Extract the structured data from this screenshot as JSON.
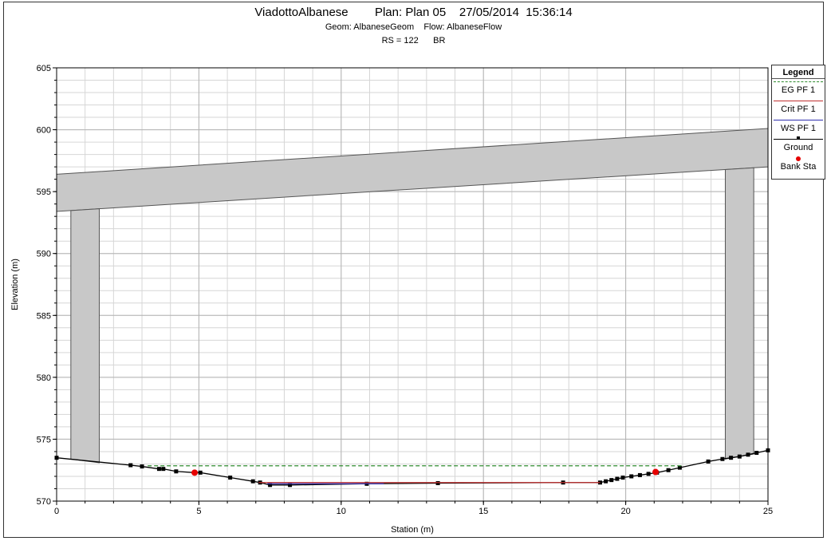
{
  "header": {
    "line1": "ViadottoAlbanese        Plan: Plan 05    27/05/2014  15:36:14",
    "line2": "Geom: AlbaneseGeom    Flow: AlbaneseFlow",
    "line3": "RS = 122      BR"
  },
  "legend": {
    "title": "Legend",
    "items": [
      {
        "name": "EG PF 1",
        "color": "#2e8b2e",
        "style": "dashed"
      },
      {
        "name": "Crit PF 1",
        "color": "#c03030",
        "style": "solid"
      },
      {
        "name": "WS PF 1",
        "color": "#3030b0",
        "style": "solid"
      },
      {
        "name": "Ground",
        "color": "#000000",
        "style": "solid-marker"
      },
      {
        "name": "Bank Sta",
        "color": "#e60000",
        "style": "dot"
      }
    ]
  },
  "chart_data": {
    "type": "line",
    "xlabel": "Station (m)",
    "ylabel": "Elevation (m)",
    "xlim": [
      0,
      25
    ],
    "ylim": [
      570,
      605
    ],
    "x_major_ticks": [
      0,
      5,
      10,
      15,
      20,
      25
    ],
    "y_major_ticks": [
      570,
      575,
      580,
      585,
      590,
      595,
      600,
      605
    ],
    "x_minor_step": 1,
    "y_minor_step": 1,
    "grid": true,
    "legend_position": "right",
    "series": [
      {
        "name": "Ground",
        "color": "#000000",
        "x": [
          0,
          2.6,
          3,
          3.6,
          3.75,
          4.2,
          4.85,
          5.05,
          6.1,
          6.9,
          7.15,
          7.5,
          8.2,
          10.9,
          13.4,
          17.8,
          19.1,
          19.3,
          19.5,
          19.7,
          19.9,
          20.2,
          20.5,
          20.8,
          21.1,
          21.5,
          21.9,
          22.9,
          23.4,
          23.7,
          24.0,
          24.3,
          24.6,
          25.0
        ],
        "y": [
          573.5,
          572.9,
          572.8,
          572.6,
          572.6,
          572.4,
          572.3,
          572.3,
          571.9,
          571.6,
          571.5,
          571.3,
          571.3,
          571.4,
          571.45,
          571.5,
          571.5,
          571.6,
          571.7,
          571.8,
          571.9,
          572.0,
          572.1,
          572.2,
          572.3,
          572.5,
          572.7,
          573.2,
          573.4,
          573.5,
          573.6,
          573.75,
          573.9,
          574.1
        ]
      },
      {
        "name": "EG PF 1",
        "color": "#2e8b2e",
        "x": [
          3.2,
          22.0
        ],
        "y": [
          572.85,
          572.85
        ]
      },
      {
        "name": "Crit PF 1",
        "color": "#c03030",
        "x": [
          7.1,
          19.1
        ],
        "y": [
          571.5,
          571.5
        ]
      },
      {
        "name": "WS PF 1",
        "color": "#3030b0",
        "x": [
          7.4,
          11.5
        ],
        "y": [
          571.4,
          571.4
        ]
      }
    ],
    "bank_stations": [
      {
        "x": 4.85,
        "y": 572.3
      },
      {
        "x": 21.05,
        "y": 572.35
      }
    ],
    "bridge": {
      "deck_top": [
        {
          "x": 0,
          "y": 596.4
        },
        {
          "x": 25,
          "y": 600.1
        }
      ],
      "deck_bottom": [
        {
          "x": 0,
          "y": 593.4
        },
        {
          "x": 25,
          "y": 597.0
        }
      ],
      "piers": [
        {
          "x_left": 0.5,
          "x_right": 1.5,
          "y_bottom_left": 573.4,
          "y_bottom_right": 573.1
        },
        {
          "x_left": 23.5,
          "x_right": 24.5,
          "y_bottom_left": 573.4,
          "y_bottom_right": 573.8
        }
      ],
      "fill": "#c8c8c8"
    }
  }
}
